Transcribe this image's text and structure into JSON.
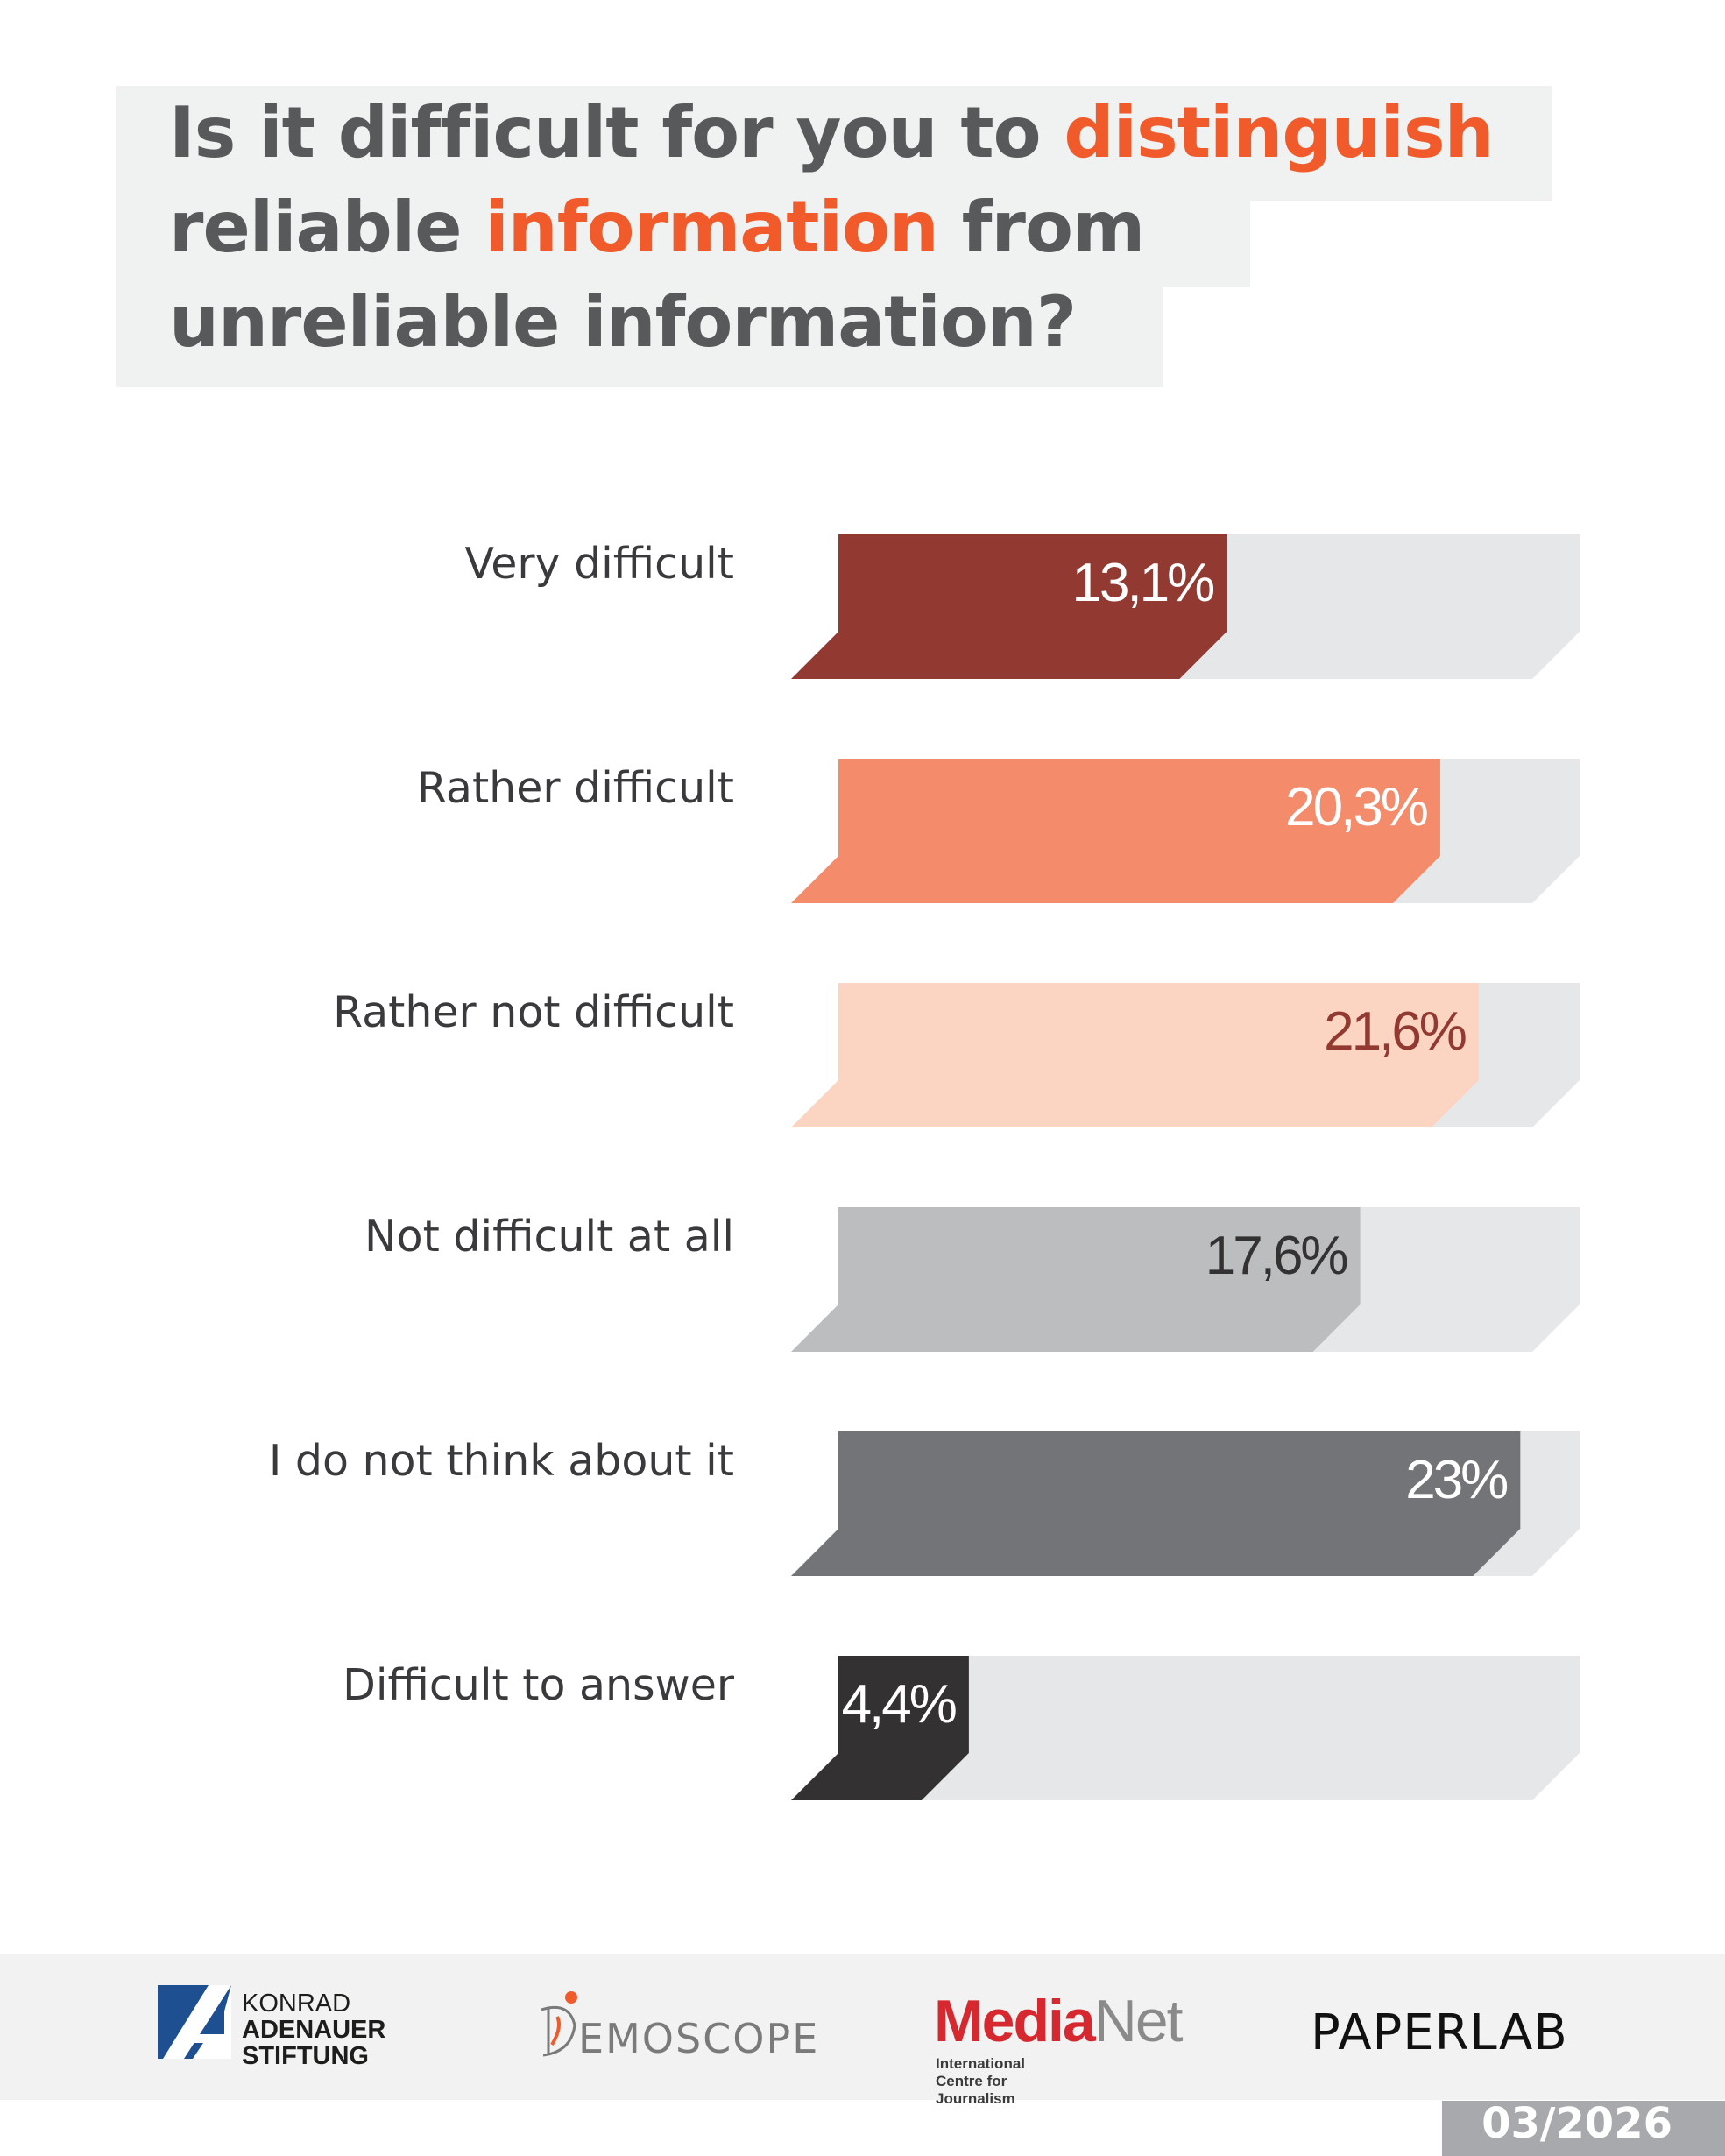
{
  "title": {
    "line1_a": "Is it difficult for you to ",
    "line1_b": "distinguish",
    "line2_a": "reliable ",
    "line2_b": "information",
    "line2_c": " from",
    "line3": "unreliable information?"
  },
  "chart_data": {
    "type": "bar",
    "orientation": "horizontal",
    "title": "Is it difficult for you to distinguish reliable information from unreliable information?",
    "categories": [
      "Very difficult",
      "Rather difficult",
      "Rather not difficult",
      "Not difficult at all",
      "I do not think about it",
      "Difficult to answer"
    ],
    "values": [
      13.1,
      20.3,
      21.6,
      17.6,
      23,
      4.4
    ],
    "value_labels": [
      "13,1%",
      "20,3%",
      "21,6%",
      "17,6%",
      "23%",
      "4,4%"
    ],
    "colors": [
      "#923a32",
      "#f48b6b",
      "#fbd5c2",
      "#bcbdbf",
      "#737478",
      "#333132"
    ],
    "label_colors": [
      "#ffffff",
      "#ffffff",
      "#923a32",
      "#333132",
      "#ffffff",
      "#ffffff"
    ],
    "track_color": "#e6e7e8",
    "xlim": [
      0,
      25
    ],
    "xlabel": "",
    "ylabel": "",
    "grid": false,
    "legend": "none"
  },
  "footer": {
    "kas_line1": "KONRAD",
    "kas_line2": "ADENAUER",
    "kas_line3": "STIFTUNG",
    "demoscope": "EMOSCOPE",
    "medianet_a": "Media",
    "medianet_b": "Net",
    "medianet_sub": "International Centre for Journalism",
    "paperlab": "PAPERLAB",
    "date": "03/2026"
  }
}
